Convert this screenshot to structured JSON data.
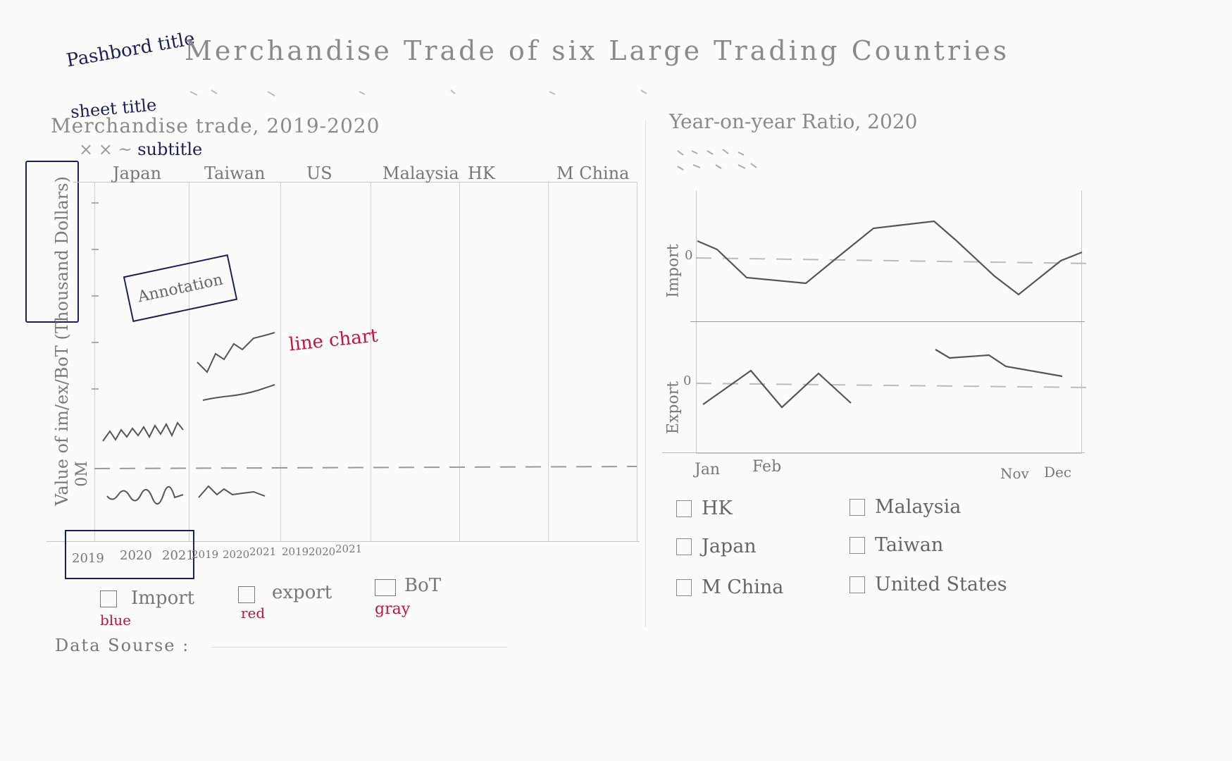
{
  "annotations": {
    "dashboard_title": "Pashbord title",
    "sheet_title": "sheet title",
    "subtitle": "subtitle",
    "line_chart": "line chart",
    "annotation_box": "Annotation"
  },
  "dashboard": {
    "title": "Merchandise Trade of six Large Trading Countries"
  },
  "left_sheet": {
    "title": "Merchandise trade, 2019-2020",
    "y_axis_label": "Value of im/ex/BoT (Thousand Dollars)",
    "zero_label": "0M",
    "countries": [
      "Japan",
      "Taiwan",
      "US",
      "Malaysia",
      "HK",
      "M China"
    ],
    "years": [
      "2019",
      "2020",
      "2021"
    ],
    "legend": [
      {
        "label": "Import",
        "color_note": "blue",
        "color": "#2f5bd3"
      },
      {
        "label": "export",
        "color_note": "red",
        "color": "#d0344a"
      },
      {
        "label": "BoT",
        "color_note": "gray",
        "color": "#888888"
      }
    ],
    "data_source": "Data Sourse :"
  },
  "right_sheet": {
    "title": "Year-on-year Ratio, 2020",
    "panels": [
      {
        "label": "Import",
        "zero": "0"
      },
      {
        "label": "Export",
        "zero": "0"
      }
    ],
    "x_labels": [
      "Jan",
      "Feb",
      "Nov",
      "Dec"
    ],
    "filters": [
      "HK",
      "Malaysia",
      "Japan",
      "Taiwan",
      "M China",
      "United States"
    ]
  }
}
